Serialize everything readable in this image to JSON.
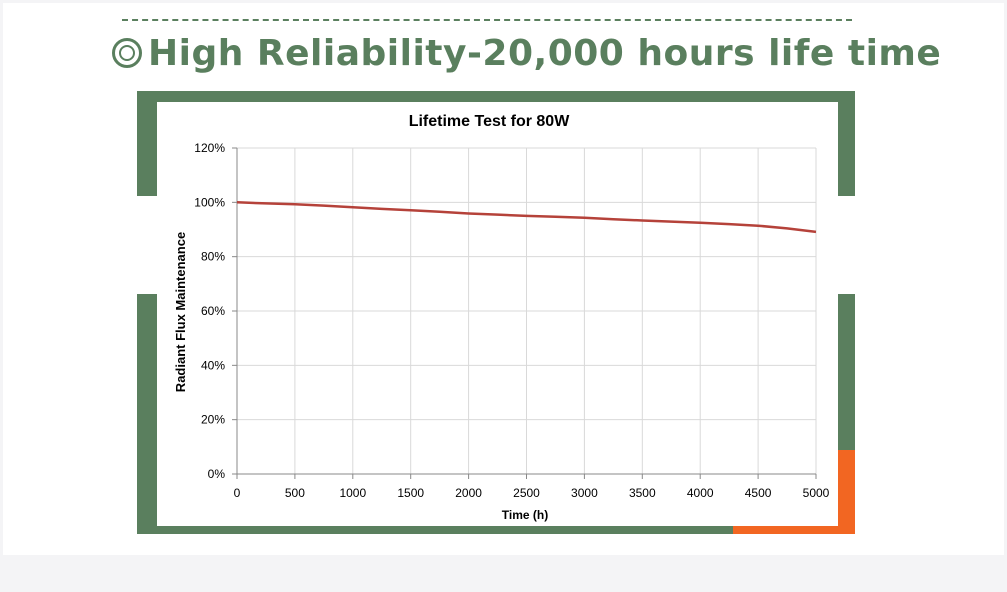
{
  "headline": {
    "text": "High Reliability-20,000 hours life time",
    "color": "#5a7f5e",
    "accent_color": "#f26622"
  },
  "chart_data": {
    "type": "line",
    "title": "Lifetime Test for 80W",
    "xlabel": "Time (h)",
    "ylabel": "Radiant Flux Maintenance",
    "xlim": [
      0,
      5000
    ],
    "ylim": [
      0,
      120
    ],
    "x_ticks": [
      0,
      500,
      1000,
      1500,
      2000,
      2500,
      3000,
      3500,
      4000,
      4500,
      5000
    ],
    "y_ticks": [
      0,
      20,
      40,
      60,
      80,
      100,
      120
    ],
    "y_tick_labels": [
      "0%",
      "20%",
      "40%",
      "60%",
      "80%",
      "100%",
      "120%"
    ],
    "grid": true,
    "series": [
      {
        "color": "#b5423a",
        "x": [
          0,
          250,
          500,
          750,
          1000,
          1250,
          1500,
          1750,
          2000,
          2250,
          2500,
          2750,
          3000,
          3250,
          3500,
          3750,
          4000,
          4250,
          4500,
          4750,
          5000
        ],
        "y": [
          100,
          99.6,
          99.3,
          98.8,
          98.2,
          97.6,
          97.1,
          96.5,
          95.9,
          95.5,
          95.0,
          94.7,
          94.3,
          93.8,
          93.3,
          92.9,
          92.5,
          92.0,
          91.4,
          90.4,
          89.1
        ]
      }
    ]
  }
}
